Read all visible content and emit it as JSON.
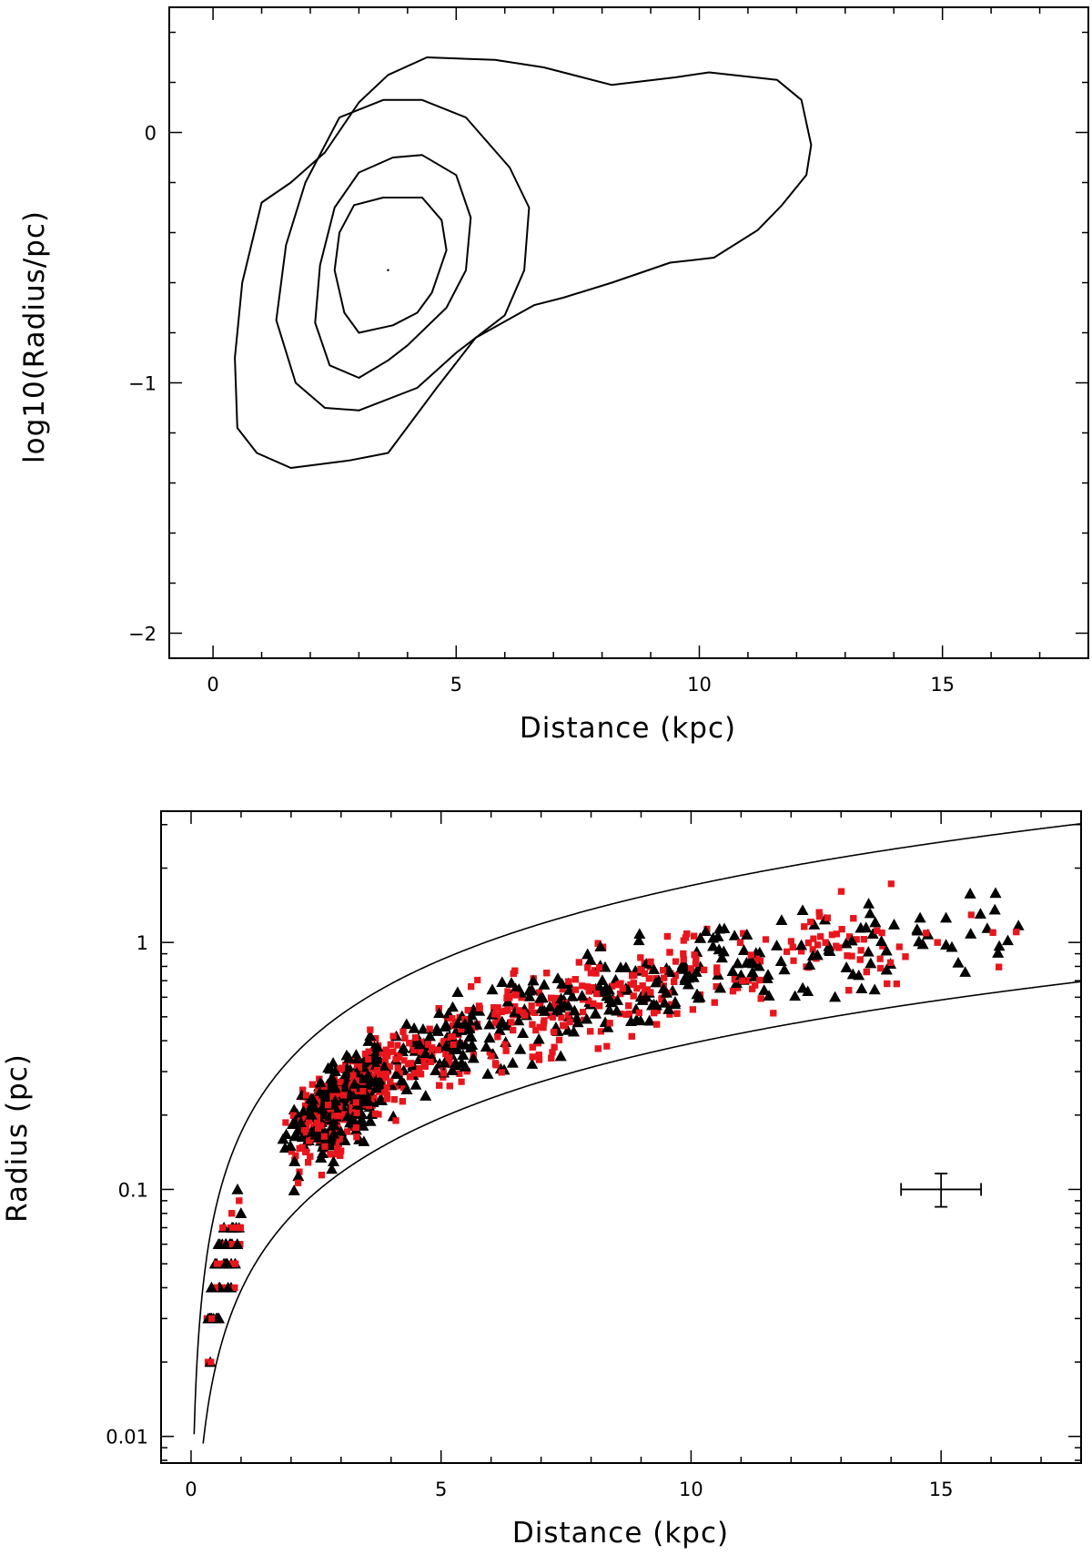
{
  "chart_data": [
    {
      "type": "contour",
      "xlabel": "Distance (kpc)",
      "ylabel": "log10(Radius/pc)",
      "xlim": [
        -0.9,
        18.0
      ],
      "ylim": [
        -2.1,
        0.5
      ],
      "xticks_major": [
        0,
        5,
        10,
        15
      ],
      "xtick_labels": [
        "0",
        "5",
        "10",
        "15"
      ],
      "yticks_major": [
        -2,
        -1,
        0
      ],
      "ytick_labels": [
        "−2",
        "−1",
        "0"
      ],
      "grid": false,
      "contours": [
        {
          "level": 1,
          "points": [
            [
              1.6,
              -1.34
            ],
            [
              0.9,
              -1.28
            ],
            [
              0.5,
              -1.18
            ],
            [
              0.45,
              -0.9
            ],
            [
              0.6,
              -0.6
            ],
            [
              1.0,
              -0.28
            ],
            [
              1.6,
              -0.2
            ],
            [
              2.3,
              -0.08
            ],
            [
              3.0,
              0.12
            ],
            [
              3.6,
              0.23
            ],
            [
              4.4,
              0.3
            ],
            [
              5.8,
              0.29
            ],
            [
              6.8,
              0.26
            ],
            [
              8.2,
              0.19
            ],
            [
              9.5,
              0.22
            ],
            [
              10.2,
              0.24
            ],
            [
              11.6,
              0.21
            ],
            [
              12.1,
              0.13
            ],
            [
              12.3,
              -0.05
            ],
            [
              12.2,
              -0.17
            ],
            [
              11.7,
              -0.29
            ],
            [
              11.2,
              -0.39
            ],
            [
              10.3,
              -0.5
            ],
            [
              9.4,
              -0.52
            ],
            [
              8.2,
              -0.6
            ],
            [
              7.2,
              -0.66
            ],
            [
              6.6,
              -0.69
            ],
            [
              5.4,
              -0.82
            ],
            [
              4.6,
              -1.02
            ],
            [
              3.6,
              -1.28
            ],
            [
              2.8,
              -1.31
            ],
            [
              1.6,
              -1.34
            ]
          ]
        },
        {
          "level": 2,
          "points": [
            [
              2.3,
              -1.1
            ],
            [
              1.7,
              -1.0
            ],
            [
              1.3,
              -0.75
            ],
            [
              1.5,
              -0.45
            ],
            [
              1.9,
              -0.2
            ],
            [
              2.6,
              0.06
            ],
            [
              3.5,
              0.13
            ],
            [
              4.3,
              0.13
            ],
            [
              5.2,
              0.06
            ],
            [
              6.1,
              -0.14
            ],
            [
              6.5,
              -0.3
            ],
            [
              6.4,
              -0.55
            ],
            [
              6.0,
              -0.73
            ],
            [
              5.0,
              -0.88
            ],
            [
              4.2,
              -1.02
            ],
            [
              3.0,
              -1.11
            ],
            [
              2.3,
              -1.1
            ]
          ]
        },
        {
          "level": 3,
          "points": [
            [
              3.0,
              -0.98
            ],
            [
              2.4,
              -0.93
            ],
            [
              2.1,
              -0.76
            ],
            [
              2.2,
              -0.53
            ],
            [
              2.5,
              -0.3
            ],
            [
              3.0,
              -0.16
            ],
            [
              3.7,
              -0.1
            ],
            [
              4.3,
              -0.09
            ],
            [
              5.0,
              -0.17
            ],
            [
              5.3,
              -0.34
            ],
            [
              5.2,
              -0.55
            ],
            [
              4.8,
              -0.7
            ],
            [
              4.0,
              -0.85
            ],
            [
              3.6,
              -0.91
            ],
            [
              3.0,
              -0.98
            ]
          ]
        },
        {
          "level": 4,
          "points": [
            [
              3.0,
              -0.8
            ],
            [
              2.7,
              -0.72
            ],
            [
              2.5,
              -0.55
            ],
            [
              2.6,
              -0.4
            ],
            [
              2.9,
              -0.29
            ],
            [
              3.5,
              -0.26
            ],
            [
              4.3,
              -0.26
            ],
            [
              4.7,
              -0.35
            ],
            [
              4.8,
              -0.47
            ],
            [
              4.5,
              -0.64
            ],
            [
              4.2,
              -0.72
            ],
            [
              3.7,
              -0.77
            ],
            [
              3.0,
              -0.8
            ]
          ]
        }
      ],
      "center_marker": [
        3.6,
        -0.55
      ]
    },
    {
      "type": "scatter",
      "xlabel": "Distance (kpc)",
      "ylabel": "Radius (pc)",
      "xlim": [
        -0.6,
        17.8
      ],
      "ylim": [
        0.0078,
        3.4
      ],
      "yscale": "log",
      "xticks_major": [
        0,
        5,
        10,
        15
      ],
      "xtick_labels": [
        "0",
        "5",
        "10",
        "15"
      ],
      "yticks_major": [
        0.01,
        0.1,
        1
      ],
      "ytick_labels": [
        "0.01",
        "0.1",
        "1"
      ],
      "grid": false,
      "series": [
        {
          "marker": "square",
          "color": "#e8161c",
          "count": 1100
        },
        {
          "marker": "triangle",
          "color": "#000000",
          "count": 1100
        }
      ],
      "boundary_curves": [
        {
          "form": "R = 0.17 × D",
          "x_start": 0.06
        },
        {
          "form": "R = 0.039 × D",
          "x_start": 0.24
        }
      ],
      "error_bar": {
        "x": 15.0,
        "y": 0.1,
        "xerr": 0.8,
        "ylow": 0.085,
        "yhigh": 0.116
      }
    }
  ]
}
